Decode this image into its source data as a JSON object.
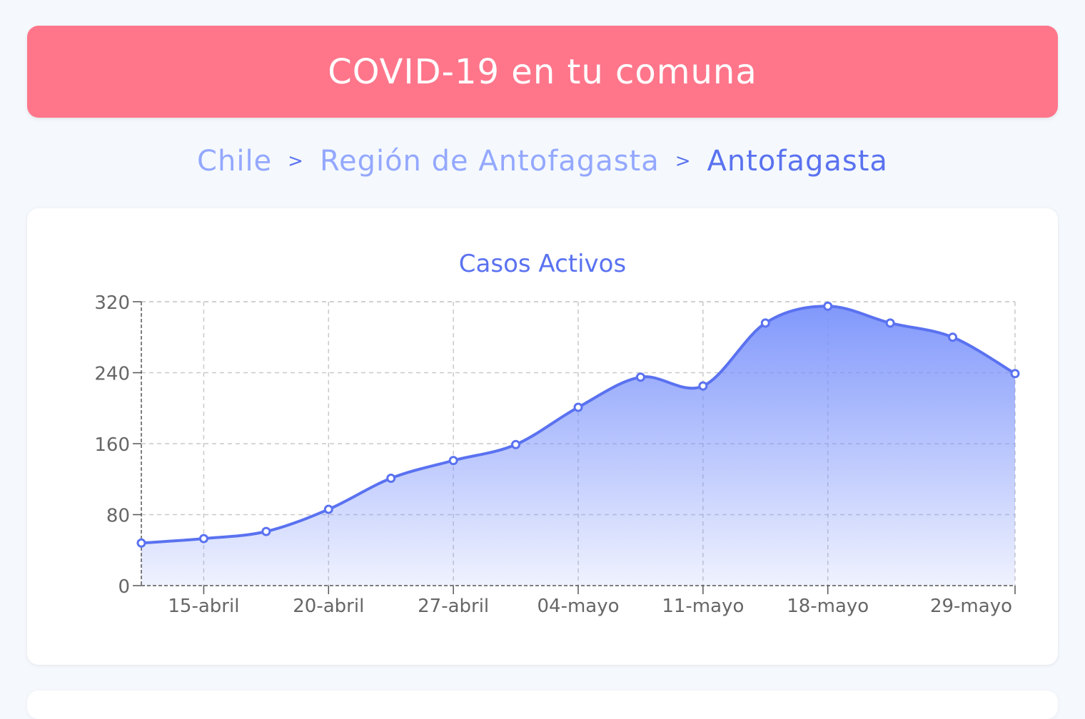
{
  "header": {
    "title": "COVID-19 en tu comuna"
  },
  "breadcrumb": {
    "items": [
      "Chile",
      "Región de Antofagasta",
      "Antofagasta"
    ],
    "separator": ">"
  },
  "colors": {
    "header_bg": "#ff768b",
    "accent": "#5a72f0",
    "crumb_light": "#94a8ff"
  },
  "chart_data": {
    "type": "area",
    "title": "Casos Activos",
    "xlabel": "",
    "ylabel": "",
    "ylim": [
      0,
      320
    ],
    "yticks": [
      0,
      80,
      160,
      240,
      320
    ],
    "xtick_labels": [
      "15-abril",
      "20-abril",
      "27-abril",
      "04-mayo",
      "11-mayo",
      "18-mayo",
      "29-mayo"
    ],
    "xtick_points": [
      1,
      3,
      5,
      7,
      9,
      11,
      14
    ],
    "grid": true,
    "series": [
      {
        "values": [
          48,
          53,
          61,
          86,
          121,
          141,
          159,
          201,
          235,
          225,
          296,
          315,
          296,
          280,
          239
        ]
      }
    ]
  }
}
